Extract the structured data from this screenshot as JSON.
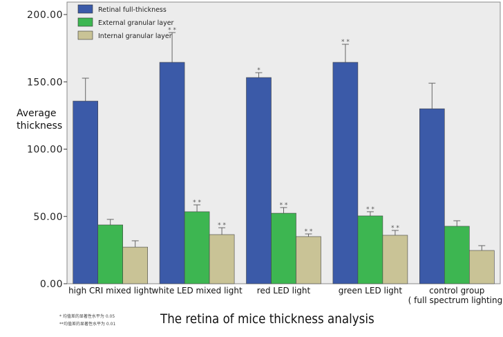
{
  "chart_data": {
    "type": "bar",
    "title": "The retina of mice thickness analysis",
    "ylabel": "Average\nthickness",
    "xlabel": "",
    "ylim": [
      0,
      200
    ],
    "yticks": [
      "0.00",
      "50.00",
      "100.00",
      "150.00",
      "200.00"
    ],
    "categories": [
      "high CRI mixed light",
      "white LED mixed light",
      "red LED light",
      "green LED light",
      "control group\n( full spectrum lighting)"
    ],
    "series": [
      {
        "name": "Retinal full-thickness",
        "color": "#3b5aa8",
        "values": [
          135.7,
          164.5,
          153.2,
          164.5,
          130.0
        ],
        "error_upper": [
          152.7,
          186.6,
          156.8,
          177.9,
          149.0
        ],
        "significance": [
          "",
          "* *",
          "*",
          "* *",
          ""
        ]
      },
      {
        "name": "External granular layer",
        "color": "#3db651",
        "values": [
          43.7,
          53.5,
          52.4,
          50.4,
          42.7
        ],
        "error_upper": [
          47.8,
          58.6,
          56.6,
          53.5,
          46.8
        ],
        "significance": [
          "",
          "* *",
          "* *",
          "* *",
          ""
        ]
      },
      {
        "name": "Internal granular layer",
        "color": "#c9c396",
        "values": [
          27.2,
          36.5,
          35.0,
          36.0,
          24.7
        ],
        "error_upper": [
          31.9,
          41.6,
          37.0,
          39.6,
          28.3
        ],
        "significance": [
          "",
          "* *",
          "* *",
          "* *",
          ""
        ]
      }
    ],
    "legend": "top-left",
    "grid": false
  },
  "footnotes": [
    "* 均值差的显著性水平为 0.05",
    "**均值差的显著性水平为 0.01"
  ]
}
